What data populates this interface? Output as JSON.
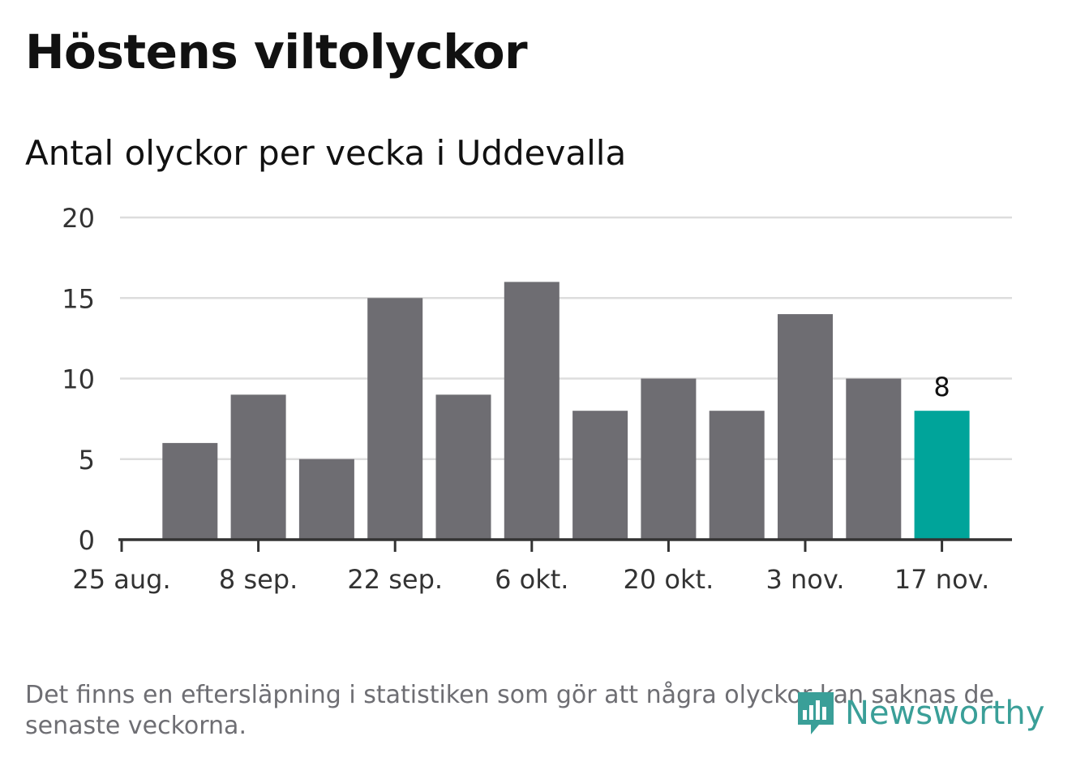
{
  "title": "Höstens viltolyckor",
  "subtitle": "Antal olyckor per vecka i Uddevalla",
  "footnote": "Det finns en eftersläpning i statistiken som gör att några olyckor kan saknas de senaste veckorna.",
  "logo_text": "Newsworthy",
  "colors": {
    "bar": "#6e6d72",
    "highlight": "#00a49a",
    "grid": "#dddddd",
    "axis": "#333333",
    "logo": "#3a9f98"
  },
  "chart_data": {
    "type": "bar",
    "title": "Höstens viltolyckor",
    "subtitle": "Antal olyckor per vecka i Uddevalla",
    "xlabel": "",
    "ylabel": "",
    "ylim": [
      0,
      20
    ],
    "yticks": [
      0,
      5,
      10,
      15,
      20
    ],
    "grid": true,
    "xtick_labels": [
      "25 aug.",
      "8 sep.",
      "22 sep.",
      "6 okt.",
      "20 okt.",
      "3 nov.",
      "17 nov."
    ],
    "values": [
      6,
      9,
      5,
      15,
      9,
      16,
      8,
      10,
      8,
      14,
      10,
      8
    ],
    "highlight_index": 11,
    "highlight_label": "8"
  }
}
